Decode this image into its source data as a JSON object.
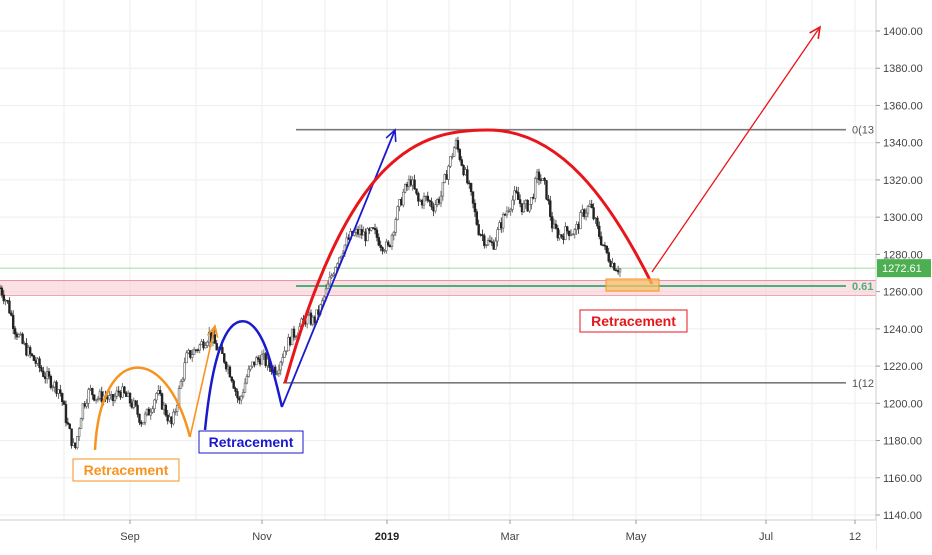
{
  "chart_data": {
    "type": "candlestick",
    "y_axis": {
      "range": [
        1136,
        1412
      ],
      "ticks": [
        1140,
        1160,
        1180,
        1200,
        1220,
        1240,
        1260,
        1280,
        1300,
        1320,
        1340,
        1360,
        1380,
        1400
      ],
      "tick_labels": [
        "1140.00",
        "1160.00",
        "1180.00",
        "1200.00",
        "1220.00",
        "1240.00",
        "1260.00",
        "1280.00",
        "1300.00",
        "1320.00",
        "1340.00",
        "1360.00",
        "1380.00",
        "1400.00"
      ],
      "side": "right"
    },
    "x_axis": {
      "ticks": [
        {
          "label": "Sep",
          "bold": false
        },
        {
          "label": "Nov",
          "bold": false
        },
        {
          "label": "2019",
          "bold": true
        },
        {
          "label": "Mar",
          "bold": false
        },
        {
          "label": "May",
          "bold": false
        },
        {
          "label": "Jul",
          "bold": false
        },
        {
          "label": "12",
          "bold": false
        }
      ]
    },
    "grid": true,
    "price_path": [
      {
        "x": 0,
        "y": 1262
      },
      {
        "x": 1,
        "y": 1254
      },
      {
        "x": 2,
        "y": 1240
      },
      {
        "x": 3,
        "y": 1232
      },
      {
        "x": 4,
        "y": 1226
      },
      {
        "x": 5,
        "y": 1221
      },
      {
        "x": 6,
        "y": 1215
      },
      {
        "x": 7,
        "y": 1211
      },
      {
        "x": 8,
        "y": 1207
      },
      {
        "x": 9,
        "y": 1189
      },
      {
        "x": 10,
        "y": 1174
      },
      {
        "x": 11,
        "y": 1198
      },
      {
        "x": 12,
        "y": 1207
      },
      {
        "x": 13,
        "y": 1203
      },
      {
        "x": 14,
        "y": 1204
      },
      {
        "x": 15,
        "y": 1201
      },
      {
        "x": 16,
        "y": 1207
      },
      {
        "x": 17,
        "y": 1203
      },
      {
        "x": 18,
        "y": 1198
      },
      {
        "x": 19,
        "y": 1190
      },
      {
        "x": 20,
        "y": 1196
      },
      {
        "x": 21,
        "y": 1206
      },
      {
        "x": 22,
        "y": 1197
      },
      {
        "x": 23,
        "y": 1188
      },
      {
        "x": 24,
        "y": 1207
      },
      {
        "x": 25,
        "y": 1225
      },
      {
        "x": 26,
        "y": 1228
      },
      {
        "x": 27,
        "y": 1232
      },
      {
        "x": 28,
        "y": 1237
      },
      {
        "x": 29,
        "y": 1230
      },
      {
        "x": 30,
        "y": 1224
      },
      {
        "x": 31,
        "y": 1215
      },
      {
        "x": 32,
        "y": 1200
      },
      {
        "x": 33,
        "y": 1214
      },
      {
        "x": 34,
        "y": 1222
      },
      {
        "x": 35,
        "y": 1225
      },
      {
        "x": 36,
        "y": 1220
      },
      {
        "x": 37,
        "y": 1218
      },
      {
        "x": 38,
        "y": 1228
      },
      {
        "x": 39,
        "y": 1236
      },
      {
        "x": 40,
        "y": 1240
      },
      {
        "x": 41,
        "y": 1246
      },
      {
        "x": 42,
        "y": 1244
      },
      {
        "x": 43,
        "y": 1252
      },
      {
        "x": 44,
        "y": 1264
      },
      {
        "x": 45,
        "y": 1276
      },
      {
        "x": 46,
        "y": 1284
      },
      {
        "x": 47,
        "y": 1290
      },
      {
        "x": 48,
        "y": 1292
      },
      {
        "x": 49,
        "y": 1290
      },
      {
        "x": 50,
        "y": 1292
      },
      {
        "x": 51,
        "y": 1286
      },
      {
        "x": 52,
        "y": 1283
      },
      {
        "x": 53,
        "y": 1300
      },
      {
        "x": 54,
        "y": 1313
      },
      {
        "x": 55,
        "y": 1320
      },
      {
        "x": 56,
        "y": 1308
      },
      {
        "x": 57,
        "y": 1310
      },
      {
        "x": 58,
        "y": 1306
      },
      {
        "x": 59,
        "y": 1311
      },
      {
        "x": 60,
        "y": 1327
      },
      {
        "x": 61,
        "y": 1340
      },
      {
        "x": 62,
        "y": 1327
      },
      {
        "x": 63,
        "y": 1312
      },
      {
        "x": 64,
        "y": 1294
      },
      {
        "x": 65,
        "y": 1287
      },
      {
        "x": 66,
        "y": 1285
      },
      {
        "x": 67,
        "y": 1296
      },
      {
        "x": 68,
        "y": 1305
      },
      {
        "x": 69,
        "y": 1312
      },
      {
        "x": 70,
        "y": 1305
      },
      {
        "x": 71,
        "y": 1307
      },
      {
        "x": 72,
        "y": 1323
      },
      {
        "x": 73,
        "y": 1316
      },
      {
        "x": 74,
        "y": 1294
      },
      {
        "x": 75,
        "y": 1290
      },
      {
        "x": 76,
        "y": 1293
      },
      {
        "x": 77,
        "y": 1292
      },
      {
        "x": 78,
        "y": 1302
      },
      {
        "x": 79,
        "y": 1306
      },
      {
        "x": 80,
        "y": 1293
      },
      {
        "x": 81,
        "y": 1282
      },
      {
        "x": 82,
        "y": 1275
      },
      {
        "x": 83,
        "y": 1272
      }
    ],
    "last_price_label": "1272.61",
    "fib_levels": [
      {
        "label": "0(13",
        "value": 1347
      },
      {
        "label": "0.61",
        "value": 1263
      },
      {
        "label": "1(12",
        "value": 1211
      }
    ],
    "support_zone": [
      1258,
      1266
    ],
    "arrow_tip_value": 1400,
    "annotations": [
      {
        "text": "Retracement",
        "color": "#f7931e"
      },
      {
        "text": "Retracement",
        "color": "#1a1acc"
      },
      {
        "text": "Retracement",
        "color": "#e8161b"
      }
    ],
    "colors": {
      "up": "#26a69a",
      "down": "#222222",
      "orange": "#f7931e",
      "blue": "#1a1acc",
      "red": "#e8161b",
      "fib_line": "#7a7a7a",
      "fib_green": "#4caf7d",
      "zone_fill": "#f7c6cd",
      "price_tag": "#4caf50"
    }
  }
}
